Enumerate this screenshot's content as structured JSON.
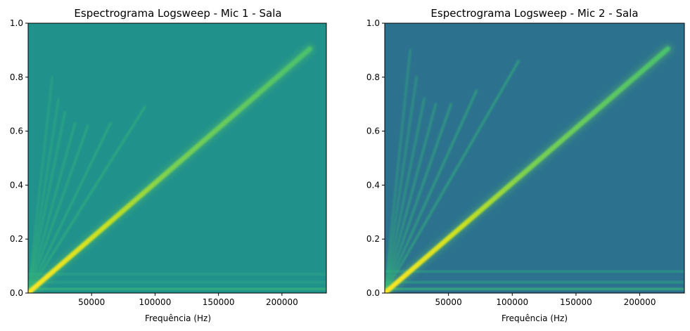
{
  "chart_data": [
    {
      "type": "heatmap",
      "title": "Espectrograma Logsweep - Mic 1 - Sala",
      "xlabel": "Frequência (Hz)",
      "ylabel": "",
      "xlim": [
        0,
        235000
      ],
      "ylim": [
        0,
        1.0
      ],
      "x_ticks": [
        50000,
        100000,
        150000,
        200000
      ],
      "x_tick_labels": [
        "50000",
        "100000",
        "150000",
        "200000"
      ],
      "y_ticks": [
        0.0,
        0.2,
        0.4,
        0.6,
        0.8,
        1.0
      ],
      "y_tick_labels": [
        "0.0",
        "0.2",
        "0.4",
        "0.6",
        "0.8",
        "1.0"
      ],
      "colormap": "viridis",
      "background_color": "#21918c",
      "sweep_line": {
        "x_start": 0,
        "y_start": 0.0,
        "x_end": 222000,
        "y_end": 0.905
      },
      "harmonics_x_end": [
        92000,
        65000,
        47000,
        37000,
        29000,
        24000,
        19000
      ],
      "harmonics_y_end": [
        0.69,
        0.63,
        0.62,
        0.63,
        0.67,
        0.72,
        0.8
      ],
      "noise_bands_y": [
        0.015,
        0.04,
        0.07
      ]
    },
    {
      "type": "heatmap",
      "title": "Espectrograma Logsweep - Mic 2 - Sala",
      "xlabel": "Frequência (Hz)",
      "ylabel": "",
      "xlim": [
        0,
        235000
      ],
      "ylim": [
        0,
        1.0
      ],
      "x_ticks": [
        50000,
        100000,
        150000,
        200000
      ],
      "x_tick_labels": [
        "50000",
        "100000",
        "150000",
        "200000"
      ],
      "y_ticks": [
        0.0,
        0.2,
        0.4,
        0.6,
        0.8,
        1.0
      ],
      "y_tick_labels": [
        "0.0",
        "0.2",
        "0.4",
        "0.6",
        "0.8",
        "1.0"
      ],
      "colormap": "viridis",
      "background_color": "#2c728e",
      "sweep_line": {
        "x_start": 0,
        "y_start": 0.0,
        "x_end": 222000,
        "y_end": 0.905
      },
      "harmonics_x_end": [
        105000,
        72000,
        52000,
        40000,
        31000,
        25000,
        20000
      ],
      "harmonics_y_end": [
        0.86,
        0.75,
        0.7,
        0.7,
        0.72,
        0.8,
        0.9
      ],
      "noise_bands_y": [
        0.015,
        0.04,
        0.08
      ]
    }
  ]
}
